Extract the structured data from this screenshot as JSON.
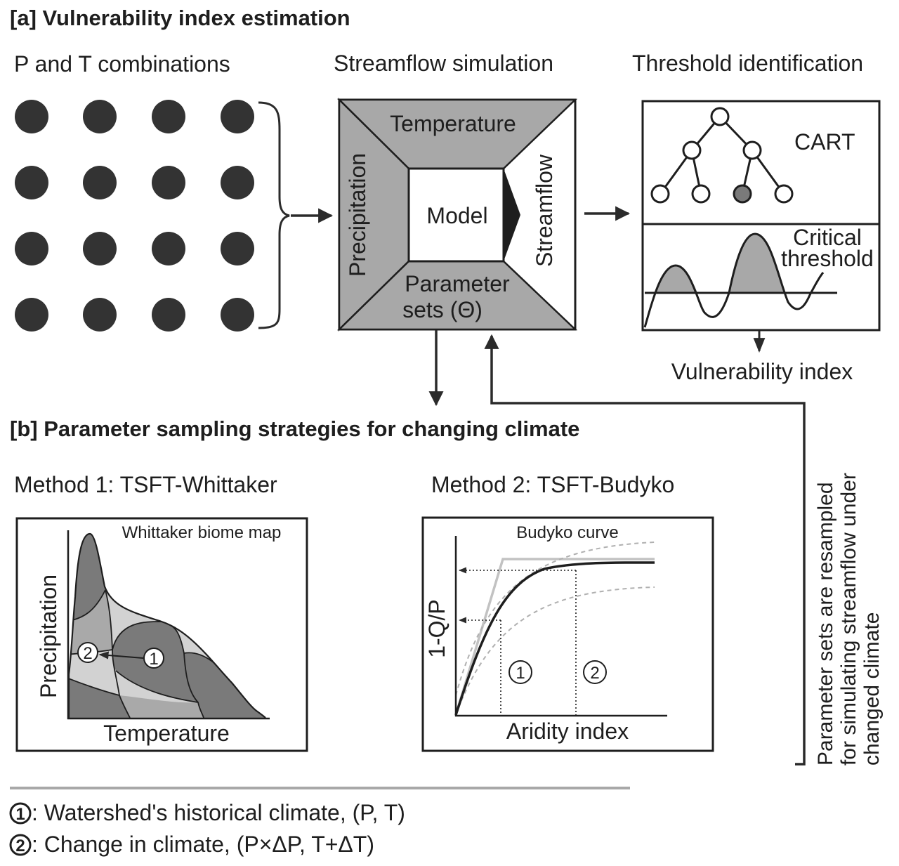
{
  "section_a": {
    "heading": "[a] Vulnerability index estimation",
    "col1_title": "P and T combinations",
    "col2_title": "Streamflow simulation",
    "col3_title": "Threshold identification"
  },
  "model_box": {
    "temperature": "Temperature",
    "precipitation": "Precipitation",
    "model": "Model",
    "streamflow": "Streamflow",
    "param_line1": "Parameter",
    "param_line2": "sets (Θ)"
  },
  "threshold_panel": {
    "cart": "CART",
    "critical_line1": "Critical",
    "critical_line2": "threshold",
    "vulnerability_index": "Vulnerability index"
  },
  "side_note": {
    "line1": "Parameter sets are resampled",
    "line2": "for simulating streamflow under",
    "line3": "changed climate"
  },
  "section_b": {
    "heading": "[b] Parameter sampling strategies for changing climate",
    "method1_title": "Method 1: TSFT-Whittaker",
    "method2_title": "Method 2: TSFT-Budyko"
  },
  "whittaker": {
    "map_label": "Whittaker biome map",
    "ylabel": "Precipitation",
    "xlabel": "Temperature",
    "marker1": "1",
    "marker2": "2"
  },
  "budyko": {
    "curve_label": "Budyko curve",
    "ylabel": "1-Q/P",
    "xlabel": "Aridity index",
    "marker1": "1",
    "marker2": "2"
  },
  "legend": {
    "marker1": "1",
    "marker2": "2",
    "item1": ": Watershed's historical climate, (P, T)",
    "item2": ": Change in climate, (P×ΔP, T+ΔT)"
  },
  "colors": {
    "dark": "#1e1e1e",
    "frame_gray": "#a8a8a8",
    "dot": "#333333",
    "whittaker_dark": "#7a7a7a",
    "whittaker_mid": "#a9a9a9",
    "whittaker_light": "#d2d2d2",
    "budyko_limit": "#c2c2c2"
  }
}
